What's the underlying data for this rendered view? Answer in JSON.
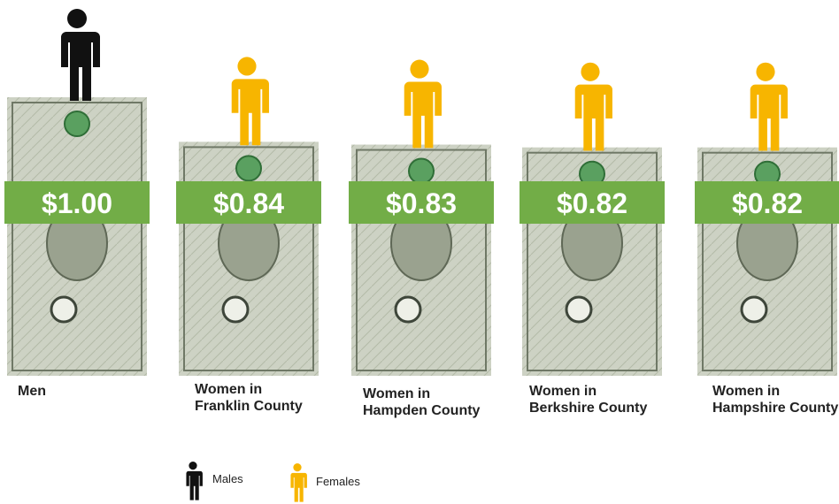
{
  "chart_data": {
    "type": "bar",
    "categories": [
      "Men",
      "Women in\nFranklin County",
      "Women in\nHampden County",
      "Women in\nBerkshire County",
      "Women in\nHampshire County"
    ],
    "series": [
      {
        "name": "Males",
        "color": "#111111",
        "values": [
          1.0,
          null,
          null,
          null,
          null
        ],
        "value_labels": [
          "$1.00",
          null,
          null,
          null,
          null
        ]
      },
      {
        "name": "Females",
        "color": "#f7b500",
        "values": [
          null,
          0.84,
          0.83,
          0.82,
          0.82
        ],
        "value_labels": [
          null,
          "$0.84",
          "$0.83",
          "$0.82",
          "$0.82"
        ]
      }
    ],
    "band_color": "#72ad47"
  }
}
